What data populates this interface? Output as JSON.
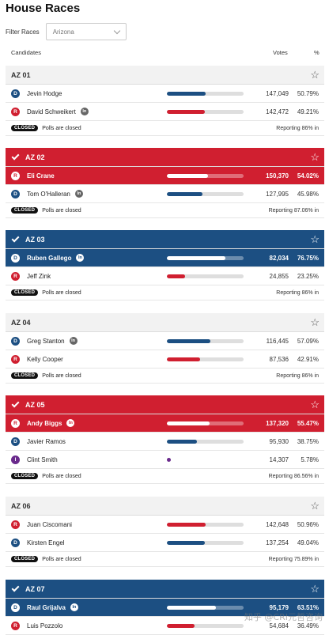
{
  "page": {
    "title": "House Races"
  },
  "filter": {
    "label": "Filter Races",
    "selected": "Arizona"
  },
  "columns": {
    "candidates": "Candidates",
    "votes": "Votes",
    "pct": "%"
  },
  "status_label": "CLOSED",
  "polls_text": "Polls are closed",
  "races": [
    {
      "name": "AZ 01",
      "called": false,
      "reporting": "Reporting 86% in",
      "candidates": [
        {
          "party": "D",
          "name": "Jevin Hodge",
          "incumbent": false,
          "votes": "147,049",
          "pct": "50.79%",
          "share": 50.79,
          "winner": false
        },
        {
          "party": "R",
          "name": "David Schweikert",
          "incumbent": true,
          "votes": "142,472",
          "pct": "49.21%",
          "share": 49.21,
          "winner": false
        }
      ]
    },
    {
      "name": "AZ 02",
      "called": "R",
      "reporting": "Reporting 87.06% in",
      "candidates": [
        {
          "party": "R",
          "name": "Eli Crane",
          "incumbent": false,
          "votes": "150,370",
          "pct": "54.02%",
          "share": 54.02,
          "winner": true
        },
        {
          "party": "D",
          "name": "Tom O'Halleran",
          "incumbent": true,
          "votes": "127,995",
          "pct": "45.98%",
          "share": 45.98,
          "winner": false
        }
      ]
    },
    {
      "name": "AZ 03",
      "called": "D",
      "reporting": "Reporting 86% in",
      "candidates": [
        {
          "party": "D",
          "name": "Ruben Gallego",
          "incumbent": true,
          "votes": "82,034",
          "pct": "76.75%",
          "share": 76.75,
          "winner": true
        },
        {
          "party": "R",
          "name": "Jeff Zink",
          "incumbent": false,
          "votes": "24,855",
          "pct": "23.25%",
          "share": 23.25,
          "winner": false
        }
      ]
    },
    {
      "name": "AZ 04",
      "called": false,
      "reporting": "Reporting 86% in",
      "candidates": [
        {
          "party": "D",
          "name": "Greg Stanton",
          "incumbent": true,
          "votes": "116,445",
          "pct": "57.09%",
          "share": 57.09,
          "winner": false
        },
        {
          "party": "R",
          "name": "Kelly Cooper",
          "incumbent": false,
          "votes": "87,536",
          "pct": "42.91%",
          "share": 42.91,
          "winner": false
        }
      ]
    },
    {
      "name": "AZ 05",
      "called": "R",
      "reporting": "Reporting 86.56% in",
      "candidates": [
        {
          "party": "R",
          "name": "Andy Biggs",
          "incumbent": true,
          "votes": "137,320",
          "pct": "55.47%",
          "share": 55.47,
          "winner": true
        },
        {
          "party": "D",
          "name": "Javier Ramos",
          "incumbent": false,
          "votes": "95,930",
          "pct": "38.75%",
          "share": 38.75,
          "winner": false
        },
        {
          "party": "I",
          "name": "Clint Smith",
          "incumbent": false,
          "votes": "14,307",
          "pct": "5.78%",
          "share": 5.78,
          "winner": false
        }
      ]
    },
    {
      "name": "AZ 06",
      "called": false,
      "reporting": "Reporting 75.89% in",
      "candidates": [
        {
          "party": "R",
          "name": "Juan Ciscomani",
          "incumbent": false,
          "votes": "142,648",
          "pct": "50.96%",
          "share": 50.96,
          "winner": false
        },
        {
          "party": "D",
          "name": "Kirsten Engel",
          "incumbent": false,
          "votes": "137,254",
          "pct": "49.04%",
          "share": 49.04,
          "winner": false
        }
      ]
    },
    {
      "name": "AZ 07",
      "called": "D",
      "reporting": "",
      "candidates": [
        {
          "party": "D",
          "name": "Raul Grijalva",
          "incumbent": true,
          "votes": "95,179",
          "pct": "63.51%",
          "share": 63.51,
          "winner": true
        },
        {
          "party": "R",
          "name": "Luis Pozzolo",
          "incumbent": false,
          "votes": "54,684",
          "pct": "36.49%",
          "share": 36.49,
          "winner": false
        }
      ]
    }
  ],
  "watermark": "知乎 @CRI元哲咨询"
}
